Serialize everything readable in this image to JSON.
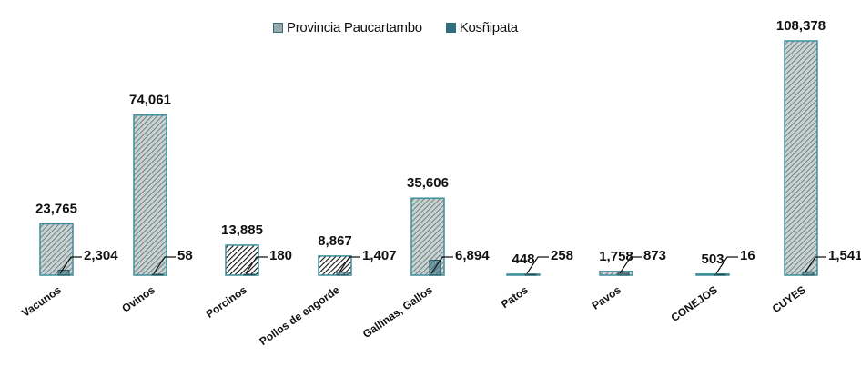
{
  "legend": {
    "series_1": "Provincia Paucartambo",
    "series_2": "Kosñipata"
  },
  "colors": {
    "series_1_fill": "#9aa9a9",
    "series_1_stroke": "#3c8e9c",
    "series_2_fill": "#2f6f7d",
    "series_2_stroke": "#1f4f59",
    "label_color": "#111111"
  },
  "chart_data": {
    "type": "bar",
    "categories": [
      "Vacunos",
      "Ovinos",
      "Porcinos",
      "Pollos de engorde",
      "Gallinas, Gallos",
      "Patos",
      "Pavos",
      "CONEJOS",
      "CUYES"
    ],
    "series": [
      {
        "name": "Provincia Paucartambo",
        "values": [
          23765,
          74061,
          13885,
          8867,
          35606,
          448,
          1758,
          503,
          108378
        ]
      },
      {
        "name": "Kosñipata",
        "values": [
          2304,
          58,
          180,
          1407,
          6894,
          258,
          873,
          16,
          1541
        ]
      }
    ],
    "data_labels": {
      "series_1": [
        "23,765",
        "74,061",
        "13,885",
        "8,867",
        "35,606",
        "448",
        "1,758",
        "503",
        "108,378"
      ],
      "series_2": [
        "2,304",
        "58",
        "180",
        "1,407",
        "6,894",
        "258",
        "873",
        "16",
        "1,541"
      ]
    },
    "ylim": [
      0,
      108378
    ],
    "grid": false,
    "legend_position": "top-center"
  }
}
